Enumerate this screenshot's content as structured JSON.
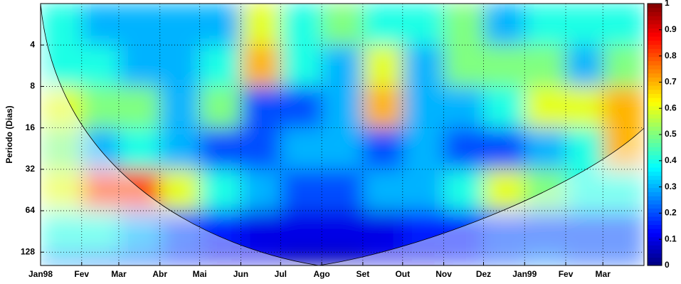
{
  "chart_data": {
    "type": "heatmap",
    "ylabel": "Periodo (Dias)",
    "xbins": [
      0,
      31,
      59,
      90,
      120,
      151,
      181,
      212,
      243,
      273,
      304,
      334,
      365,
      396,
      424,
      455
    ],
    "ybins": [
      2,
      4,
      8,
      16,
      32,
      64,
      128,
      160
    ],
    "values": [
      [
        0.4,
        0.3,
        0.3,
        0.3,
        0.3,
        0.6,
        0.4,
        0.5,
        0.4,
        0.4,
        0.5,
        0.3,
        0.4,
        0.4,
        0.4
      ],
      [
        0.4,
        0.4,
        0.3,
        0.3,
        0.4,
        0.7,
        0.4,
        0.3,
        0.6,
        0.3,
        0.5,
        0.5,
        0.5,
        0.3,
        0.5
      ],
      [
        0.6,
        0.5,
        0.5,
        0.3,
        0.5,
        0.2,
        0.2,
        0.3,
        0.7,
        0.3,
        0.3,
        0.4,
        0.6,
        0.6,
        0.7
      ],
      [
        0.5,
        0.3,
        0.4,
        0.3,
        0.2,
        0.2,
        0.3,
        0.3,
        0.2,
        0.3,
        0.2,
        0.2,
        0.3,
        0.4,
        0.7
      ],
      [
        0.6,
        0.8,
        0.8,
        0.6,
        0.4,
        0.3,
        0.2,
        0.2,
        0.3,
        0.3,
        0.4,
        0.6,
        0.5,
        0.4,
        0.4
      ],
      [
        0.4,
        0.4,
        0.3,
        0.2,
        0.15,
        0.1,
        0.1,
        0.1,
        0.1,
        0.15,
        0.15,
        0.2,
        0.2,
        0.2,
        0.2
      ],
      [
        0.25,
        0.2,
        0.2,
        0.15,
        0.1,
        0.1,
        0.05,
        0.05,
        0.1,
        0.1,
        0.15,
        0.2,
        0.25,
        0.2,
        0.2
      ]
    ],
    "xlim": [
      0,
      455
    ],
    "xticks": [
      {
        "value": 0,
        "label": "Jan98"
      },
      {
        "value": 31,
        "label": "Fev"
      },
      {
        "value": 59,
        "label": "Mar"
      },
      {
        "value": 90,
        "label": "Abr"
      },
      {
        "value": 120,
        "label": "Mai"
      },
      {
        "value": 151,
        "label": "Jun"
      },
      {
        "value": 181,
        "label": "Jul"
      },
      {
        "value": 212,
        "label": "Ago"
      },
      {
        "value": 243,
        "label": "Set"
      },
      {
        "value": 273,
        "label": "Out"
      },
      {
        "value": 304,
        "label": "Nov"
      },
      {
        "value": 334,
        "label": "Dez"
      },
      {
        "value": 365,
        "label": "Jan99"
      },
      {
        "value": 396,
        "label": "Fev"
      },
      {
        "value": 424,
        "label": "Mar"
      }
    ],
    "ylim": [
      2,
      160
    ],
    "yscale": "log2",
    "yreversed": true,
    "yticks": [
      4,
      8,
      16,
      32,
      64,
      128
    ],
    "grid": true,
    "colorbar": {
      "lim": [
        0,
        1
      ],
      "ticks": [
        0,
        0.1,
        0.2,
        0.3,
        0.4,
        0.5,
        0.6,
        0.7,
        0.8,
        0.9,
        1
      ]
    }
  }
}
